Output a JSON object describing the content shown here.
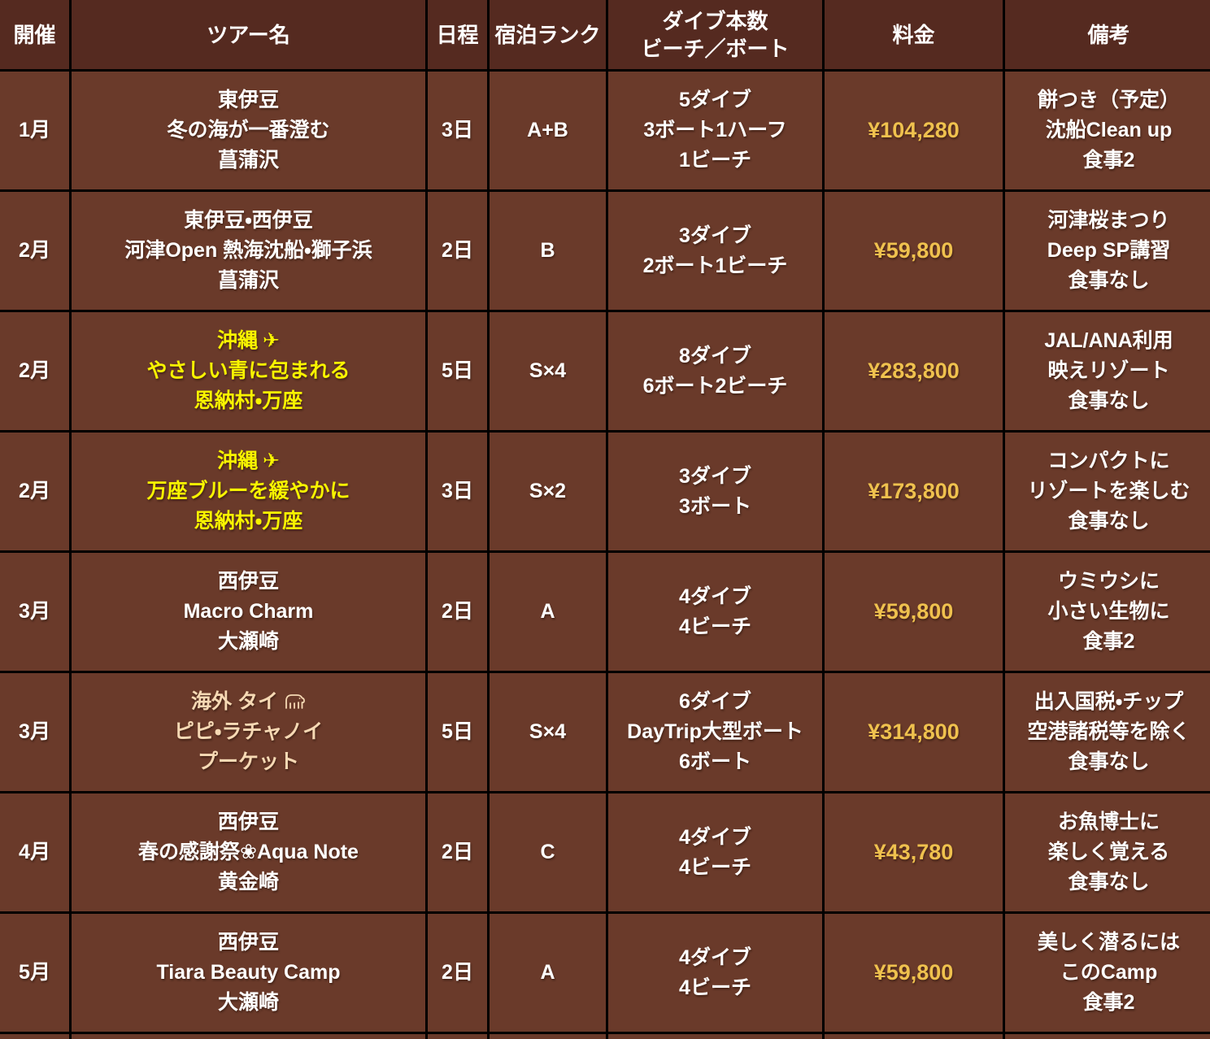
{
  "colors": {
    "header_bg": "#552a20",
    "row_bg": "#6a3a2a",
    "border": "#000000",
    "text": "#ffffff",
    "price": "#efc14e",
    "yellow": "#f8f400",
    "cream": "#f6d9b4"
  },
  "icons": {
    "airplane": "✈"
  },
  "table": {
    "columns": [
      {
        "id": "month",
        "lines": [
          "開催"
        ]
      },
      {
        "id": "tour",
        "lines": [
          "ツアー名"
        ]
      },
      {
        "id": "days",
        "lines": [
          "日程"
        ]
      },
      {
        "id": "rank",
        "lines": [
          "宿泊ランク"
        ]
      },
      {
        "id": "dives",
        "lines": [
          "ダイブ本数",
          "ビーチ／ボート"
        ]
      },
      {
        "id": "price",
        "lines": [
          "料金"
        ]
      },
      {
        "id": "notes",
        "lines": [
          "備考"
        ]
      }
    ],
    "rows": [
      {
        "month": "1月",
        "tour": {
          "lines": [
            "東伊豆",
            "冬の海が一番澄む",
            "菖蒲沢"
          ],
          "color": "text",
          "icon": ""
        },
        "days": "3日",
        "rank": "A+B",
        "dives": [
          "5ダイブ",
          "3ボート1ハーフ",
          "1ビーチ"
        ],
        "price": "¥104,280",
        "notes": [
          "餅つき（予定）",
          "沈船Clean up",
          "食事2"
        ]
      },
      {
        "month": "2月",
        "tour": {
          "lines": [
            "東伊豆・西伊豆",
            "河津Open 熱海沈船・獅子浜",
            "菖蒲沢"
          ],
          "color": "text",
          "icon": ""
        },
        "days": "2日",
        "rank": "B",
        "dives": [
          "3ダイブ",
          "2ボート1ビーチ"
        ],
        "price": "¥59,800",
        "notes": [
          "河津桜まつり",
          "Deep SP講習",
          "食事なし"
        ]
      },
      {
        "month": "2月",
        "tour": {
          "lines": [
            "沖縄",
            "やさしい青に包まれる",
            "恩納村・万座"
          ],
          "color": "yellow",
          "icon": "airplane"
        },
        "days": "5日",
        "rank": "S×4",
        "dives": [
          "8ダイブ",
          "6ボート2ビーチ"
        ],
        "price": "¥283,800",
        "notes": [
          "JAL/ANA利用",
          "映えリゾート",
          "食事なし"
        ]
      },
      {
        "month": "2月",
        "tour": {
          "lines": [
            "沖縄",
            "万座ブルーを緩やかに",
            "恩納村・万座"
          ],
          "color": "yellow",
          "icon": "airplane"
        },
        "days": "3日",
        "rank": "S×2",
        "dives": [
          "3ダイブ",
          "3ボート"
        ],
        "price": "¥173,800",
        "notes": [
          "コンパクトに",
          "リゾートを楽しむ",
          "食事なし"
        ]
      },
      {
        "month": "3月",
        "tour": {
          "lines": [
            "西伊豆",
            "Macro Charm",
            "大瀬崎"
          ],
          "color": "text",
          "icon": ""
        },
        "days": "2日",
        "rank": "A",
        "dives": [
          "4ダイブ",
          "4ビーチ"
        ],
        "price": "¥59,800",
        "notes": [
          "ウミウシに",
          "小さい生物に",
          "食事2"
        ]
      },
      {
        "month": "3月",
        "tour": {
          "lines": [
            "海外 タイ",
            "ピピ・ラチャノイ",
            "プーケット"
          ],
          "color": "cream",
          "icon": "elephant"
        },
        "days": "5日",
        "rank": "S×4",
        "dives": [
          "6ダイブ",
          "DayTrip大型ボート",
          "6ボート"
        ],
        "price": "¥314,800",
        "notes": [
          "出入国税・チップ",
          "空港諸税等を除く",
          "食事なし"
        ]
      },
      {
        "month": "4月",
        "tour": {
          "lines": [
            "西伊豆",
            "春の感謝祭❀Aqua Note",
            "黄金崎"
          ],
          "color": "text",
          "icon": ""
        },
        "days": "2日",
        "rank": "C",
        "dives": [
          "4ダイブ",
          "4ビーチ"
        ],
        "price": "¥43,780",
        "notes": [
          "お魚博士に",
          "楽しく覚える",
          "食事なし"
        ]
      },
      {
        "month": "5月",
        "tour": {
          "lines": [
            "西伊豆",
            "Tiara Beauty Camp",
            "大瀬崎"
          ],
          "color": "text",
          "icon": ""
        },
        "days": "2日",
        "rank": "A",
        "dives": [
          "4ダイブ",
          "4ビーチ"
        ],
        "price": "¥59,800",
        "notes": [
          "美しく潜るには",
          "このCamp",
          "食事2"
        ]
      }
    ]
  }
}
